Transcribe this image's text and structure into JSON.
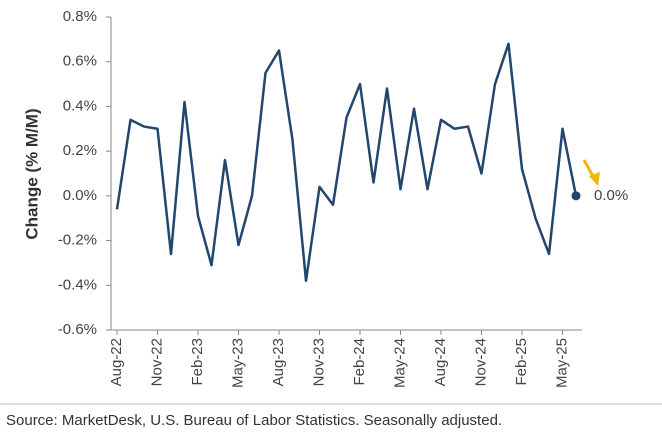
{
  "chart_data": {
    "type": "line",
    "y_label": "Change (% M/M)",
    "source": "Source: MarketDesk, U.S. Bureau of Labor Statistics. Seasonally adjusted.",
    "categories": [
      "Aug-22",
      null,
      null,
      "Nov-22",
      null,
      null,
      "Feb-23",
      null,
      null,
      "May-23",
      null,
      null,
      "Aug-23",
      null,
      null,
      "Nov-23",
      null,
      null,
      "Feb-24",
      null,
      null,
      "May-24",
      null,
      null,
      "Aug-24",
      null,
      null,
      "Nov-24",
      null,
      null,
      "Feb-25",
      null,
      null,
      "May-25",
      null
    ],
    "series": [
      {
        "color": "#22466e",
        "values": [
          -0.06,
          0.34,
          0.31,
          0.3,
          -0.26,
          0.42,
          -0.09,
          -0.31,
          0.16,
          -0.22,
          0.0,
          0.55,
          0.65,
          0.25,
          -0.38,
          0.04,
          -0.04,
          0.35,
          0.5,
          0.06,
          0.48,
          0.03,
          0.39,
          0.03,
          0.34,
          0.3,
          0.31,
          0.1,
          0.5,
          0.68,
          0.12,
          -0.1,
          -0.26,
          0.3,
          0.0
        ]
      }
    ],
    "annotation": "0.0%",
    "ylim": [
      -0.6,
      0.8
    ],
    "yticks": [
      {
        "value": -0.6,
        "label": "-0.6%"
      },
      {
        "value": -0.4,
        "label": "-0.4%"
      },
      {
        "value": -0.2,
        "label": "-0.2%"
      },
      {
        "value": 0.0,
        "label": "0.0%"
      },
      {
        "value": 0.2,
        "label": "0.2%"
      },
      {
        "value": 0.4,
        "label": "0.4%"
      },
      {
        "value": 0.6,
        "label": "0.6%"
      },
      {
        "value": 0.8,
        "label": "0.8%"
      }
    ],
    "grid": false
  }
}
